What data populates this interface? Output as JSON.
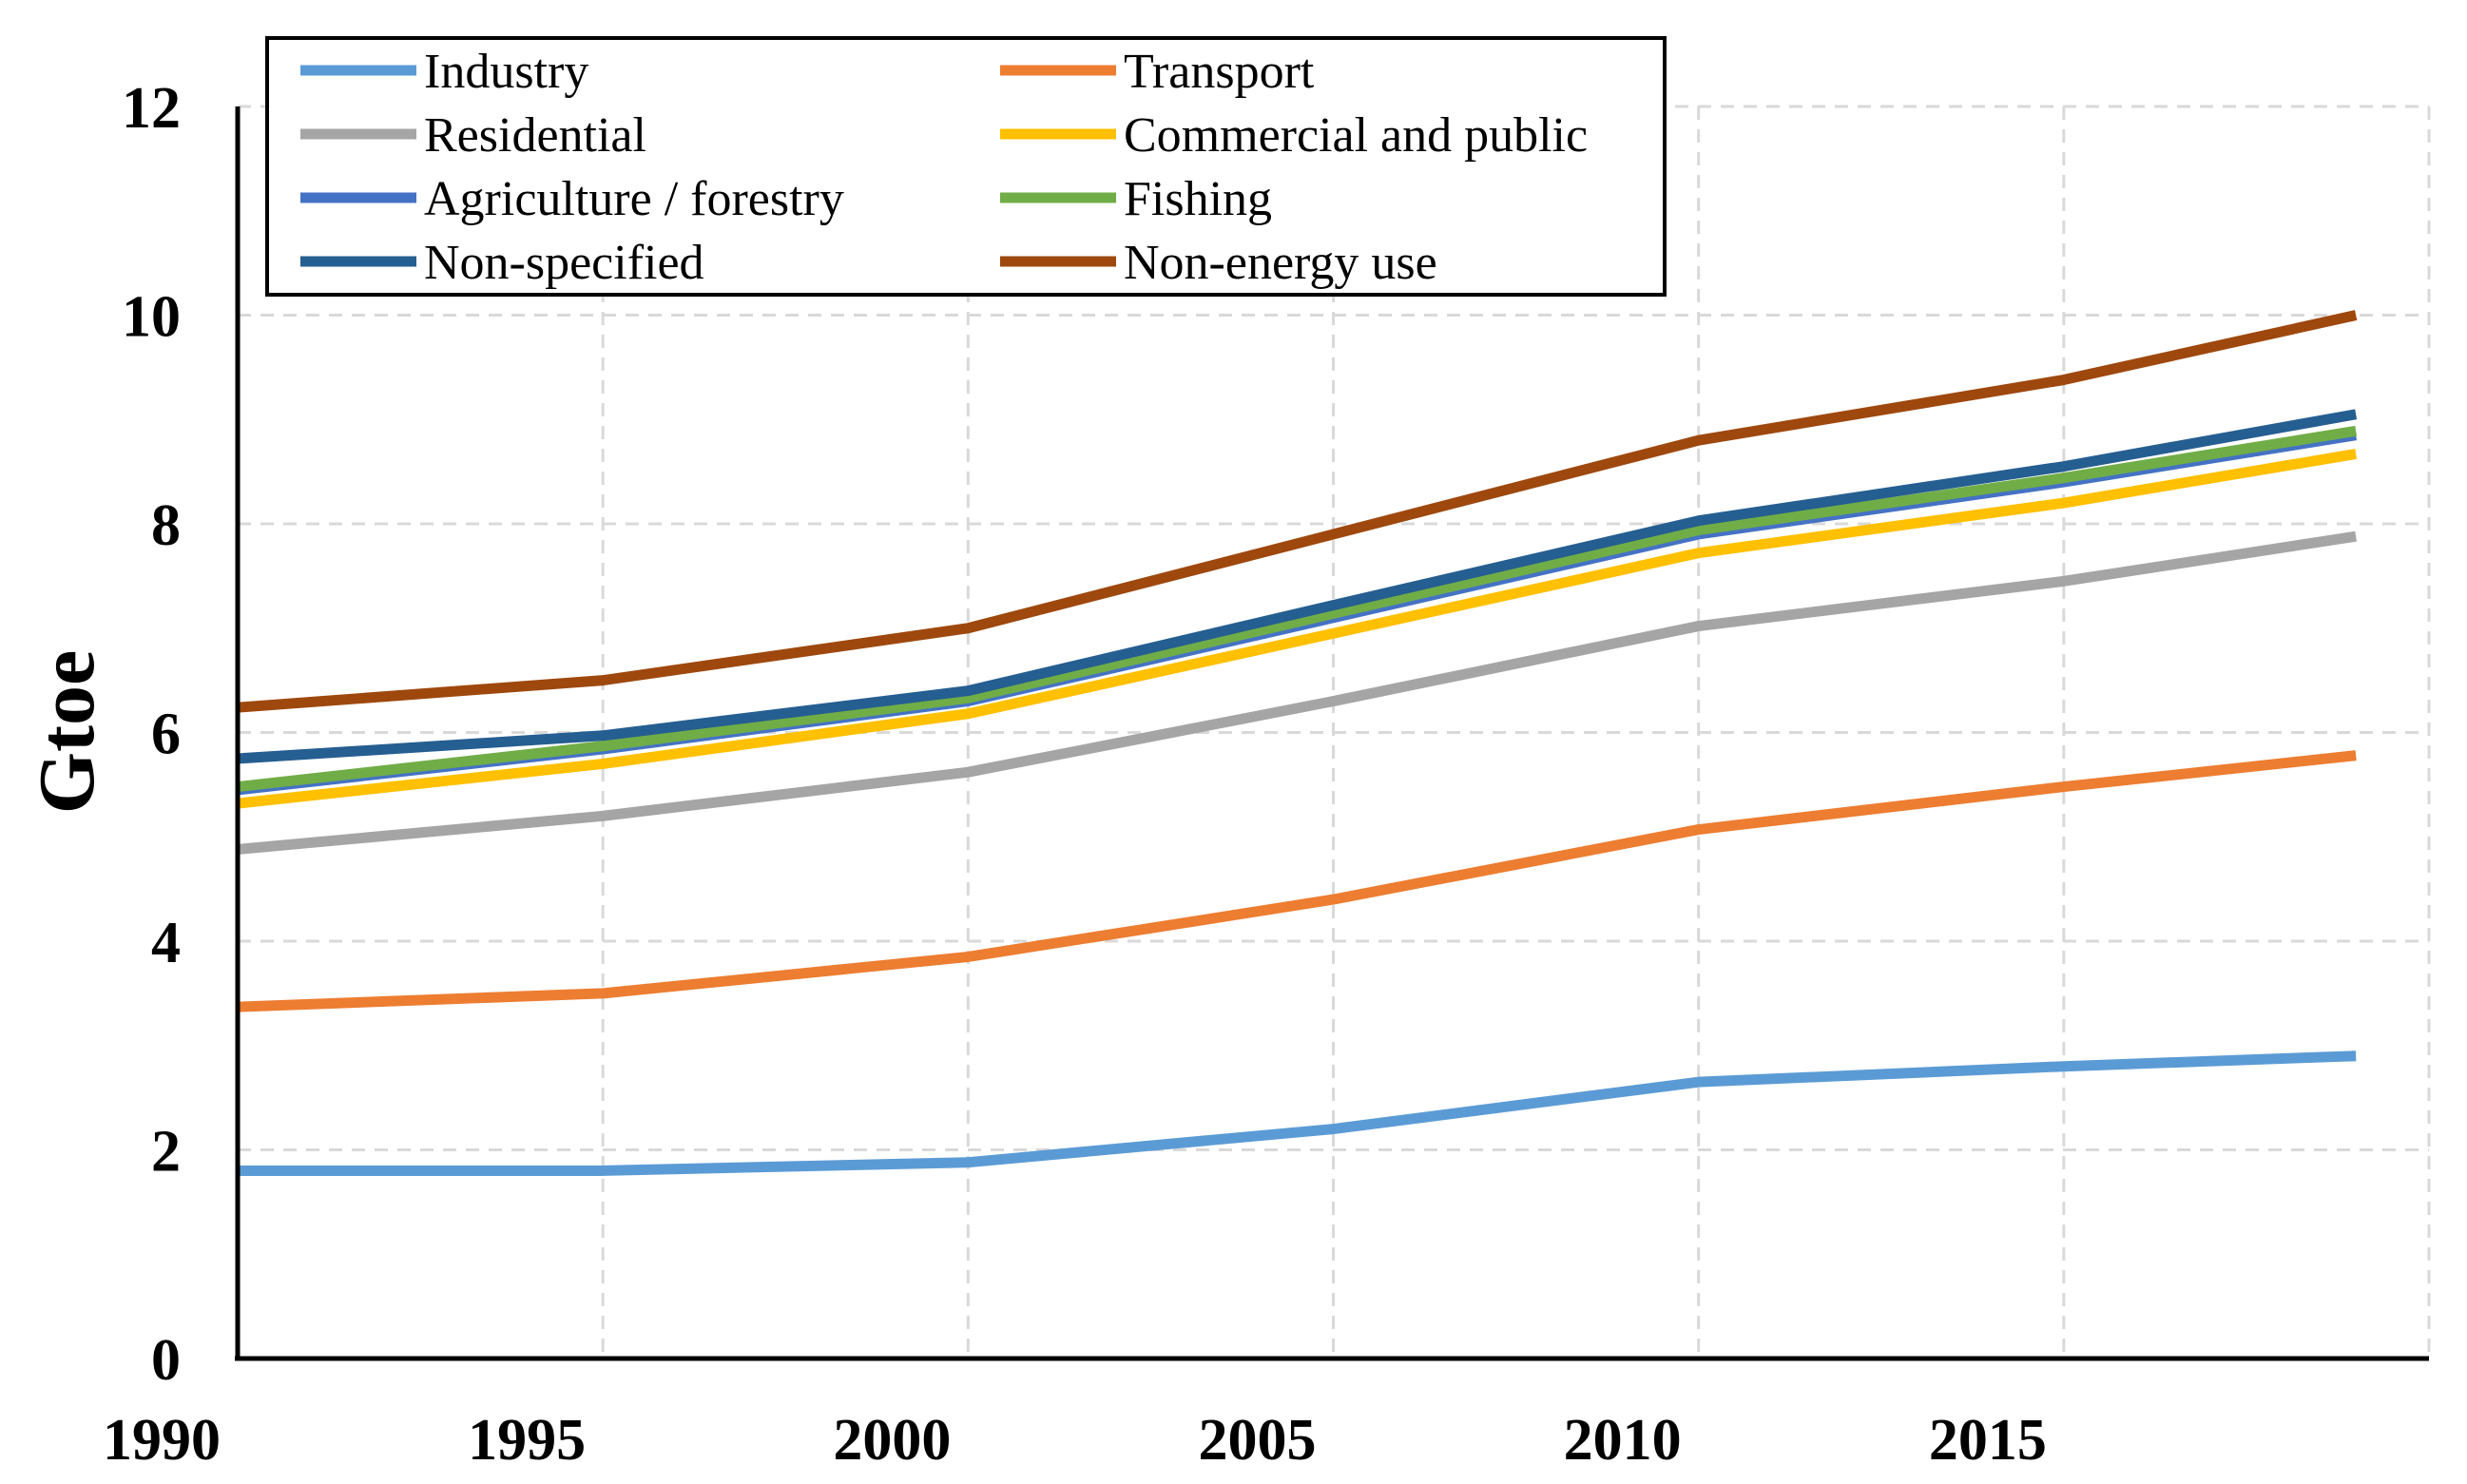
{
  "chart_data": {
    "type": "line",
    "title": "",
    "xlabel": "",
    "ylabel": "Gtoe",
    "x": [
      1990,
      1995,
      2000,
      2005,
      2010,
      2015,
      2019
    ],
    "xlim": [
      1990,
      2020
    ],
    "ylim": [
      0,
      12
    ],
    "x_ticks": [
      "1990",
      "1995",
      "2000",
      "2005",
      "2010",
      "2015"
    ],
    "x_tick_values": [
      1990,
      1995,
      2000,
      2005,
      2010,
      2015
    ],
    "y_ticks": [
      "0",
      "2",
      "4",
      "6",
      "8",
      "10",
      "12"
    ],
    "y_tick_values": [
      0,
      2,
      4,
      6,
      8,
      10,
      12
    ],
    "grid": true,
    "legend_position": "top-left",
    "series": [
      {
        "name": "Industry",
        "color": "#5b9bd5",
        "values": [
          1.8,
          1.8,
          1.88,
          2.2,
          2.65,
          2.8,
          2.9
        ]
      },
      {
        "name": "Transport",
        "color": "#ed7d31",
        "values": [
          3.37,
          3.5,
          3.85,
          4.4,
          5.07,
          5.48,
          5.78
        ]
      },
      {
        "name": "Residential",
        "color": "#a5a5a5",
        "values": [
          4.88,
          5.2,
          5.62,
          6.3,
          7.02,
          7.45,
          7.88
        ]
      },
      {
        "name": "Commercial and public",
        "color": "#ffc000",
        "values": [
          5.32,
          5.7,
          6.18,
          6.95,
          7.72,
          8.2,
          8.67
        ]
      },
      {
        "name": "Agriculture / forestry",
        "color": "#4472c4",
        "values": [
          5.45,
          5.84,
          6.3,
          7.1,
          7.9,
          8.4,
          8.85
        ]
      },
      {
        "name": "Fishing",
        "color": "#70ad47",
        "values": [
          5.48,
          5.87,
          6.33,
          7.14,
          7.94,
          8.44,
          8.89
        ]
      },
      {
        "name": "Non-specified",
        "color": "#255e91",
        "values": [
          5.75,
          5.97,
          6.4,
          7.22,
          8.03,
          8.55,
          9.05
        ]
      },
      {
        "name": "Non-energy use",
        "color": "#9e480e",
        "values": [
          6.24,
          6.5,
          7.0,
          7.9,
          8.8,
          9.38,
          10.0
        ]
      }
    ]
  }
}
